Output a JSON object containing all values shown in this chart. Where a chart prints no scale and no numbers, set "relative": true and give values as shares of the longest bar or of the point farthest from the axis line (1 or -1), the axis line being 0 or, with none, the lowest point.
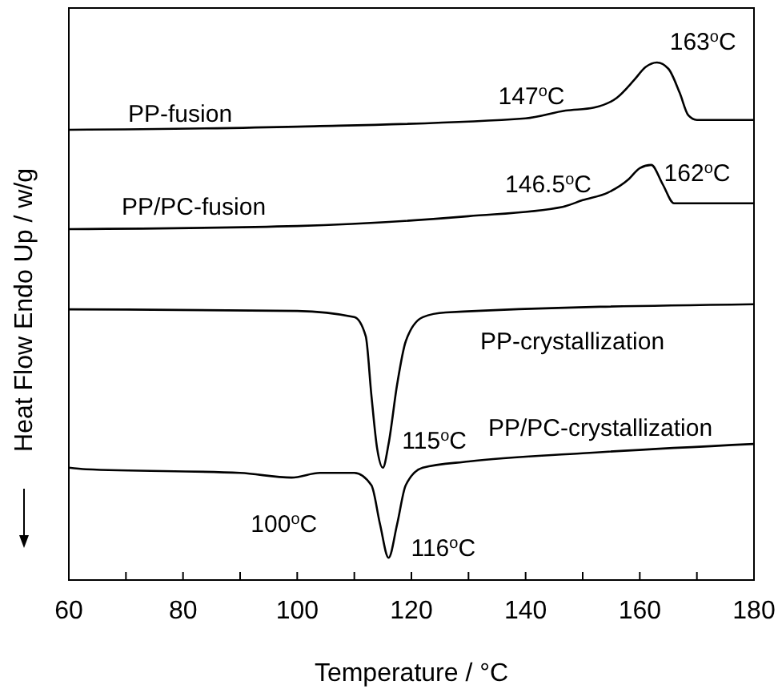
{
  "chart_data": {
    "type": "line",
    "relative": true,
    "xlabel": "Temperature / °C",
    "ylabel": "Heat Flow Endo Up / w/g",
    "xlim": [
      60,
      180
    ],
    "xticks": [
      60,
      {
        "value": 70,
        "label": null
      },
      80,
      {
        "value": 90,
        "label": null
      },
      100,
      {
        "value": 110,
        "label": null
      },
      120,
      {
        "value": 130,
        "label": null
      },
      140,
      {
        "value": 150,
        "label": null
      },
      160,
      {
        "value": 170,
        "label": null
      },
      180
    ],
    "grid": false,
    "legend": false,
    "marker": "none",
    "line_style": "solid",
    "series": [
      {
        "name": "PP-fusion",
        "color": "#000000",
        "x": [
          60,
          100,
          140,
          147,
          152,
          156,
          159,
          161,
          163,
          165,
          167,
          168.5,
          170,
          180
        ],
        "values": [
          0.87,
          0.876,
          0.892,
          0.907,
          0.913,
          0.932,
          0.966,
          0.991,
          1,
          0.988,
          0.941,
          0.898,
          0.889,
          0.889
        ]
      },
      {
        "name": "PP/PC-fusion",
        "color": "#000000",
        "x": [
          60,
          100,
          130,
          146.5,
          150,
          154.5,
          158,
          160,
          162,
          164,
          166,
          170,
          180
        ],
        "values": [
          0.678,
          0.684,
          0.703,
          0.721,
          0.734,
          0.749,
          0.774,
          0.796,
          0.802,
          0.765,
          0.728,
          0.728,
          0.728
        ]
      },
      {
        "name": "PP-crystallization",
        "color": "#000000",
        "x": [
          60,
          100,
          110,
          112,
          113,
          114,
          115,
          116,
          117.5,
          119,
          122,
          126,
          180
        ],
        "values": [
          0.523,
          0.52,
          0.508,
          0.471,
          0.356,
          0.254,
          0.217,
          0.263,
          0.378,
          0.461,
          0.508,
          0.517,
          0.533
        ]
      },
      {
        "name": "PP/PC-crystallization",
        "color": "#000000",
        "x": [
          60,
          63,
          90,
          99,
          104,
          110,
          113,
          114.5,
          116,
          117.5,
          119,
          122,
          130,
          150,
          180
        ],
        "values": [
          0.217,
          0.214,
          0.207,
          0.198,
          0.207,
          0.207,
          0.183,
          0.108,
          0.043,
          0.108,
          0.183,
          0.217,
          0.229,
          0.245,
          0.263
        ]
      }
    ],
    "annotations": [
      {
        "text": "147$^{o}$C",
        "x": 147,
        "y": 0.907
      },
      {
        "text": "163$^{o}$C",
        "x": 163,
        "y": 1
      },
      {
        "text": "146.5$^{o}$C",
        "x": 146.5,
        "y": 0.721
      },
      {
        "text": "162$^{o}$C",
        "x": 162,
        "y": 0.802
      },
      {
        "text": "115$^{o}$C",
        "x": 115,
        "y": 0.217
      },
      {
        "text": "100$^{o}$C",
        "x": 100,
        "y": 0.198
      },
      {
        "text": "116$^{o}$C",
        "x": 116,
        "y": 0.043
      }
    ]
  }
}
